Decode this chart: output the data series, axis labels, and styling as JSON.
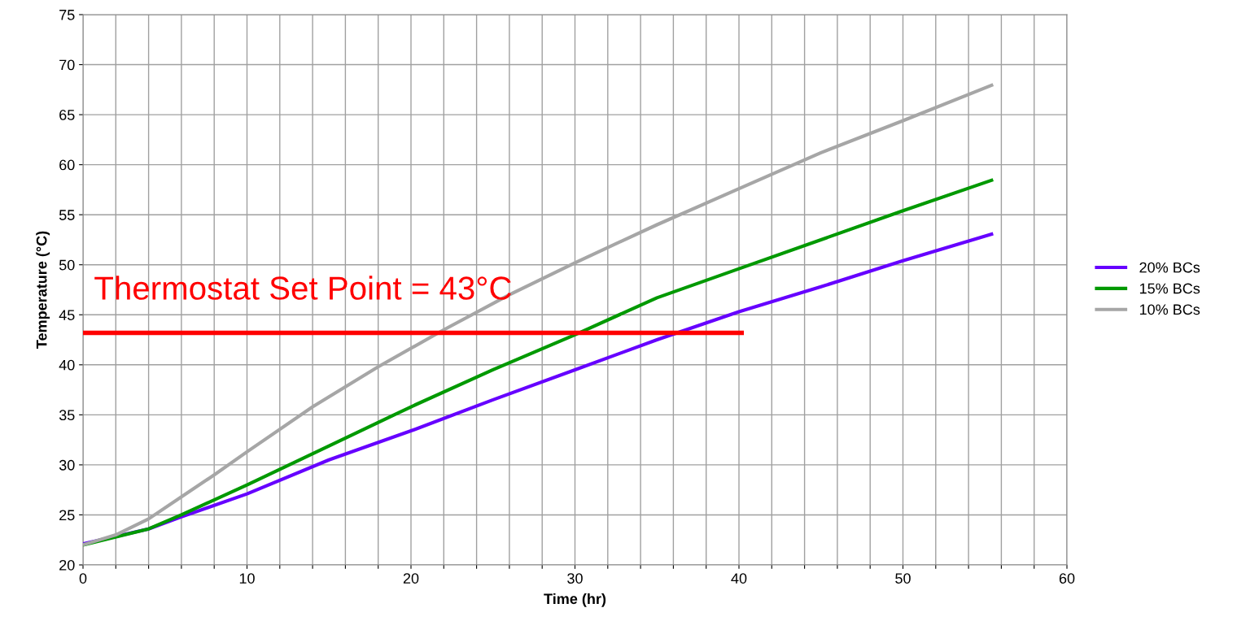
{
  "chart_data": {
    "type": "line",
    "xlabel": "Time (hr)",
    "ylabel": "Temperature (°C)",
    "xlim": [
      0,
      60
    ],
    "ylim": [
      20,
      75
    ],
    "xticks": [
      0,
      {
        "value": 2,
        "label": null
      },
      {
        "value": 4,
        "label": null
      },
      {
        "value": 6,
        "label": null
      },
      {
        "value": 8,
        "label": null
      },
      10,
      {
        "value": 12,
        "label": null
      },
      {
        "value": 14,
        "label": null
      },
      {
        "value": 16,
        "label": null
      },
      {
        "value": 18,
        "label": null
      },
      20,
      {
        "value": 22,
        "label": null
      },
      {
        "value": 24,
        "label": null
      },
      {
        "value": 26,
        "label": null
      },
      {
        "value": 28,
        "label": null
      },
      30,
      {
        "value": 32,
        "label": null
      },
      {
        "value": 34,
        "label": null
      },
      {
        "value": 36,
        "label": null
      },
      {
        "value": 38,
        "label": null
      },
      40,
      {
        "value": 42,
        "label": null
      },
      {
        "value": 44,
        "label": null
      },
      {
        "value": 46,
        "label": null
      },
      {
        "value": 48,
        "label": null
      },
      50,
      {
        "value": 52,
        "label": null
      },
      {
        "value": 54,
        "label": null
      },
      {
        "value": 56,
        "label": null
      },
      {
        "value": 58,
        "label": null
      },
      60
    ],
    "yticks": [
      20,
      25,
      30,
      35,
      40,
      45,
      50,
      55,
      60,
      65,
      70,
      75
    ],
    "grid": true,
    "legend": "right",
    "marker": "none",
    "line_style": "solid",
    "series": [
      {
        "name": "20% BCs",
        "color": "#6600ff",
        "x": [
          0,
          4,
          6,
          10,
          15,
          20,
          25,
          30,
          35,
          40,
          45,
          50,
          55.5
        ],
        "values": [
          22.1,
          23.6,
          24.8,
          27.1,
          30.5,
          33.4,
          36.5,
          39.5,
          42.5,
          45.3,
          47.8,
          50.4,
          53.1
        ]
      },
      {
        "name": "15% BCs",
        "color": "#009900",
        "x": [
          0,
          4,
          6,
          10,
          15,
          20,
          25,
          30,
          35,
          40,
          45,
          50,
          55.5
        ],
        "values": [
          22,
          23.6,
          25,
          28,
          31.9,
          35.8,
          39.5,
          43,
          46.7,
          49.6,
          52.5,
          55.4,
          58.5
        ]
      },
      {
        "name": "10% BCs",
        "color": "#a6a6a6",
        "x": [
          0,
          2,
          4,
          6,
          8,
          10,
          14,
          18,
          22,
          26,
          30,
          35,
          40,
          45,
          50,
          55.5
        ],
        "values": [
          22,
          23,
          24.6,
          26.8,
          29,
          31.3,
          35.8,
          39.8,
          43.5,
          47,
          50.2,
          54,
          57.6,
          61.2,
          64.4,
          68
        ]
      },
      {
        "color": "#ff0000",
        "x": [
          0,
          40.3
        ],
        "values": [
          43.2,
          43.2
        ]
      }
    ],
    "annotations": [
      "Thermostat Set Point = 43°C"
    ]
  }
}
